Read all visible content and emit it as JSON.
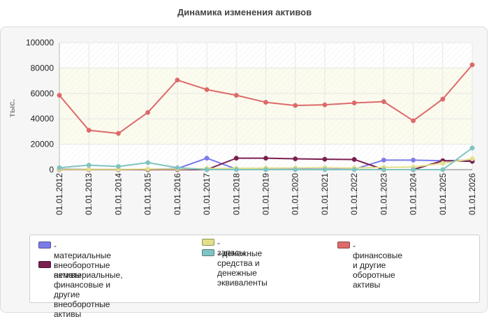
{
  "chart_data": {
    "type": "line",
    "title": "Динамика изменения активов",
    "ylabel": "тыс.",
    "xlabel": "",
    "ylim": [
      0,
      100000
    ],
    "yticks": [
      "0",
      "20000",
      "40000",
      "60000",
      "80000",
      "100000"
    ],
    "ytick_values": [
      0,
      20000,
      40000,
      60000,
      80000,
      100000
    ],
    "categories": [
      "01.01.2012",
      "01.01.2013",
      "01.01.2014",
      "01.01.2015",
      "01.01.2016",
      "01.01.2017",
      "01.01.2018",
      "01.01.2019",
      "01.01.2020",
      "01.01.2021",
      "01.01.2022",
      "01.01.2023",
      "01.01.2024",
      "01.01.2025",
      "01.01.2026"
    ],
    "grid": true,
    "legend_position": "bottom",
    "series": [
      {
        "name": "- материальные внеоборотные активы",
        "color": "#7b7bea",
        "values": [
          500,
          300,
          200,
          300,
          800,
          9000,
          400,
          300,
          300,
          300,
          300,
          7500,
          7500,
          7000,
          7500
        ]
      },
      {
        "name": "- нематериальные, финансовые и другие внеоборотные активы",
        "color": "#7a1f4f",
        "values": [
          0,
          0,
          0,
          0,
          0,
          0,
          9000,
          9000,
          8500,
          8200,
          8000,
          0,
          0,
          7000,
          6500
        ]
      },
      {
        "name": "- запасы",
        "color": "#e2df8a",
        "values": [
          200,
          200,
          200,
          400,
          400,
          800,
          1000,
          1200,
          1300,
          1500,
          1200,
          1800,
          2000,
          5000,
          8500
        ]
      },
      {
        "name": "- денежные средства и денежные эквиваленты",
        "color": "#80c4c1",
        "values": [
          1500,
          3500,
          2500,
          5500,
          1500,
          0,
          0,
          0,
          0,
          0,
          0,
          0,
          0,
          0,
          17000
        ]
      },
      {
        "name": "- финансовые и другие оборотные активы",
        "color": "#dc6a6a",
        "values": [
          58500,
          31000,
          28500,
          45000,
          70500,
          63000,
          58500,
          53000,
          50500,
          51000,
          52500,
          53500,
          38500,
          55500,
          82500
        ]
      }
    ]
  },
  "legend": {
    "items": [
      {
        "lines": [
          "- материальные внеоборотные",
          "активы"
        ],
        "color": "#7b7bea"
      },
      {
        "lines": [
          "- нематериальные,",
          "финансовые и другие",
          "внеоборотные активы"
        ],
        "color": "#7a1f4f"
      },
      {
        "lines": [
          "- запасы"
        ],
        "color": "#e2df8a"
      },
      {
        "lines": [
          "- денежные средства и",
          "денежные эквиваленты"
        ],
        "color": "#80c4c1"
      },
      {
        "lines": [
          "- финансовые и другие",
          "оборотные активы"
        ],
        "color": "#dc6a6a"
      }
    ]
  }
}
